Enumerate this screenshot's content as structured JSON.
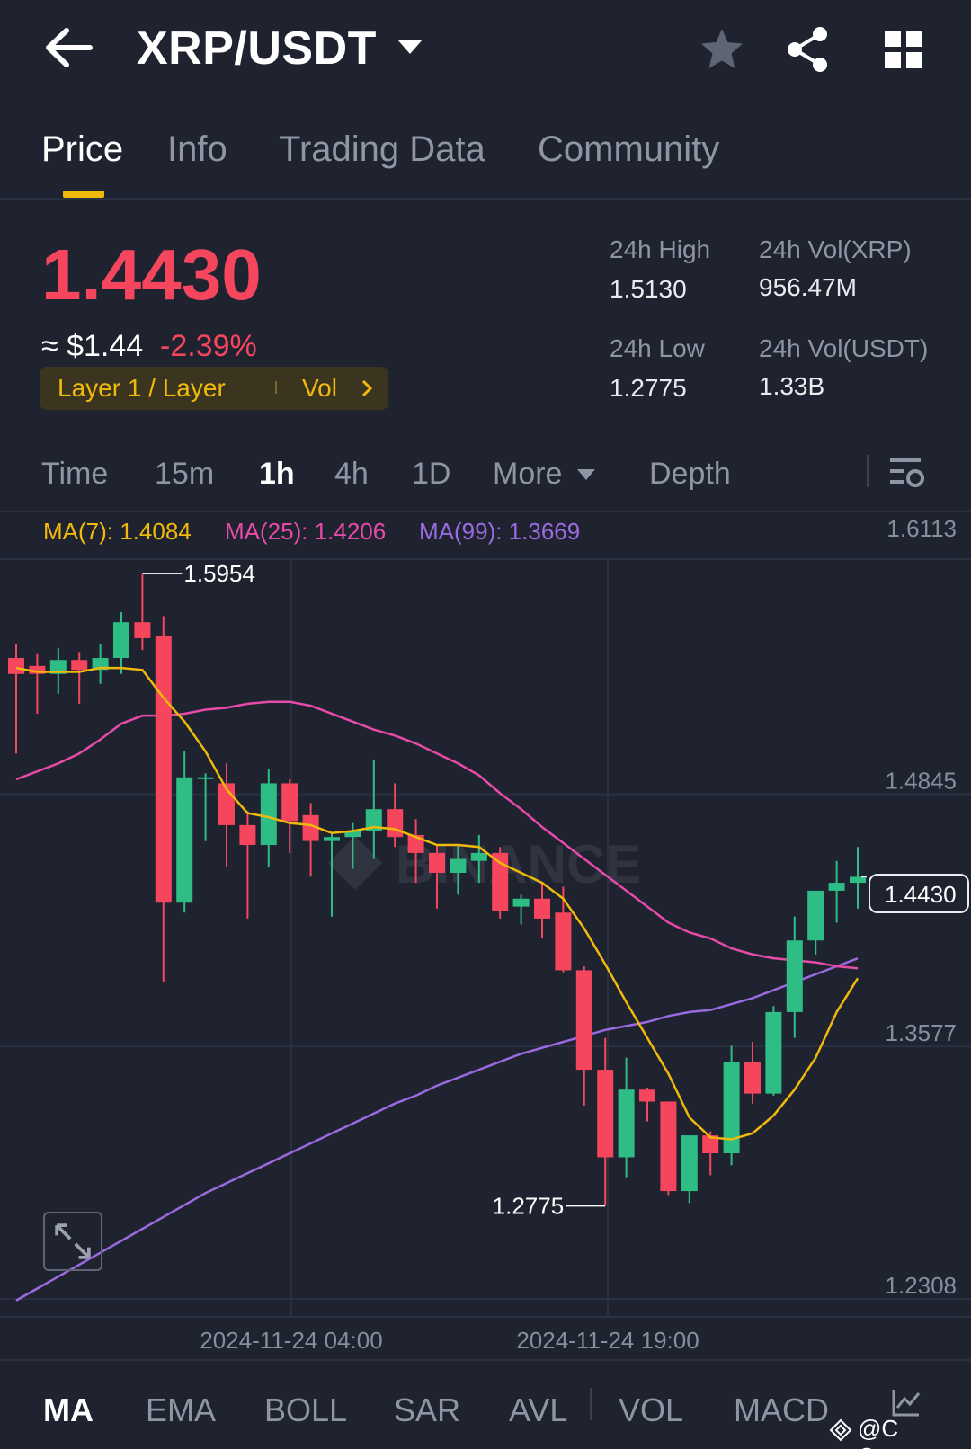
{
  "header": {
    "pair": "XRP/USDT",
    "icons": [
      "back-arrow-icon",
      "chevron-down-icon",
      "star-icon",
      "share-icon",
      "grid-icon"
    ]
  },
  "tabs": [
    {
      "label": "Price",
      "active": true
    },
    {
      "label": "Info",
      "active": false
    },
    {
      "label": "Trading Data",
      "active": false
    },
    {
      "label": "Community",
      "active": false
    }
  ],
  "ticker": {
    "last_price": "1.4430",
    "usd_approx": "≈ $1.44",
    "change_pct": "-2.39%",
    "tag_label": "Layer 1 / Layer",
    "tag_vol": "Vol",
    "stats": {
      "high_label": "24h High",
      "high_value": "1.5130",
      "low_label": "24h Low",
      "low_value": "1.2775",
      "vol_base_label": "24h Vol(XRP)",
      "vol_base_value": "956.47M",
      "vol_quote_label": "24h Vol(USDT)",
      "vol_quote_value": "1.33B"
    }
  },
  "timeframes": {
    "items": [
      "Time",
      "15m",
      "1h",
      "4h",
      "1D",
      "More"
    ],
    "active": "1h",
    "depth": "Depth"
  },
  "ma_legend": {
    "ma7": "MA(7): 1.4084",
    "ma25": "MA(25): 1.4206",
    "ma99": "MA(99): 1.3669"
  },
  "chart_data": {
    "type": "candlestick",
    "symbol": "XRP/USDT",
    "interval": "1h",
    "y_ticks": [
      "1.6113",
      "1.4845",
      "1.3577",
      "1.2308"
    ],
    "ylim": [
      1.2308,
      1.6113
    ],
    "x_ticks": [
      "2024-11-24 04:00",
      "2024-11-24 19:00"
    ],
    "high_marker": "1.5954",
    "low_marker": "1.2775",
    "current_price": "1.4430",
    "candles": [
      {
        "o": 1.553,
        "h": 1.56,
        "l": 1.505,
        "c": 1.545
      },
      {
        "o": 1.549,
        "h": 1.555,
        "l": 1.525,
        "c": 1.545
      },
      {
        "o": 1.545,
        "h": 1.558,
        "l": 1.535,
        "c": 1.552
      },
      {
        "o": 1.552,
        "h": 1.556,
        "l": 1.53,
        "c": 1.547
      },
      {
        "o": 1.547,
        "h": 1.56,
        "l": 1.54,
        "c": 1.553
      },
      {
        "o": 1.553,
        "h": 1.576,
        "l": 1.545,
        "c": 1.571
      },
      {
        "o": 1.571,
        "h": 1.595,
        "l": 1.557,
        "c": 1.563
      },
      {
        "o": 1.564,
        "h": 1.574,
        "l": 1.39,
        "c": 1.43
      },
      {
        "o": 1.43,
        "h": 1.506,
        "l": 1.425,
        "c": 1.493
      },
      {
        "o": 1.493,
        "h": 1.495,
        "l": 1.461,
        "c": 1.493
      },
      {
        "o": 1.49,
        "h": 1.5,
        "l": 1.448,
        "c": 1.469
      },
      {
        "o": 1.469,
        "h": 1.476,
        "l": 1.422,
        "c": 1.459
      },
      {
        "o": 1.459,
        "h": 1.497,
        "l": 1.448,
        "c": 1.49
      },
      {
        "o": 1.49,
        "h": 1.492,
        "l": 1.455,
        "c": 1.471
      },
      {
        "o": 1.474,
        "h": 1.48,
        "l": 1.443,
        "c": 1.461
      },
      {
        "o": 1.461,
        "h": 1.465,
        "l": 1.423,
        "c": 1.463
      },
      {
        "o": 1.463,
        "h": 1.47,
        "l": 1.447,
        "c": 1.466
      },
      {
        "o": 1.466,
        "h": 1.502,
        "l": 1.452,
        "c": 1.477
      },
      {
        "o": 1.477,
        "h": 1.49,
        "l": 1.458,
        "c": 1.463
      },
      {
        "o": 1.464,
        "h": 1.472,
        "l": 1.44,
        "c": 1.455
      },
      {
        "o": 1.455,
        "h": 1.459,
        "l": 1.427,
        "c": 1.445
      },
      {
        "o": 1.445,
        "h": 1.459,
        "l": 1.434,
        "c": 1.452
      },
      {
        "o": 1.451,
        "h": 1.464,
        "l": 1.44,
        "c": 1.455
      },
      {
        "o": 1.455,
        "h": 1.458,
        "l": 1.422,
        "c": 1.426
      },
      {
        "o": 1.428,
        "h": 1.434,
        "l": 1.419,
        "c": 1.432
      },
      {
        "o": 1.432,
        "h": 1.44,
        "l": 1.412,
        "c": 1.422
      },
      {
        "o": 1.425,
        "h": 1.438,
        "l": 1.395,
        "c": 1.396
      },
      {
        "o": 1.396,
        "h": 1.398,
        "l": 1.328,
        "c": 1.346
      },
      {
        "o": 1.346,
        "h": 1.362,
        "l": 1.278,
        "c": 1.302
      },
      {
        "o": 1.302,
        "h": 1.352,
        "l": 1.292,
        "c": 1.336
      },
      {
        "o": 1.336,
        "h": 1.337,
        "l": 1.32,
        "c": 1.33
      },
      {
        "o": 1.33,
        "h": 1.328,
        "l": 1.283,
        "c": 1.285
      },
      {
        "o": 1.285,
        "h": 1.312,
        "l": 1.279,
        "c": 1.313
      },
      {
        "o": 1.313,
        "h": 1.315,
        "l": 1.293,
        "c": 1.304
      },
      {
        "o": 1.304,
        "h": 1.358,
        "l": 1.298,
        "c": 1.35
      },
      {
        "o": 1.35,
        "h": 1.36,
        "l": 1.329,
        "c": 1.334
      },
      {
        "o": 1.334,
        "h": 1.378,
        "l": 1.333,
        "c": 1.375
      },
      {
        "o": 1.375,
        "h": 1.423,
        "l": 1.362,
        "c": 1.411
      },
      {
        "o": 1.411,
        "h": 1.434,
        "l": 1.404,
        "c": 1.436
      },
      {
        "o": 1.436,
        "h": 1.451,
        "l": 1.42,
        "c": 1.44
      },
      {
        "o": 1.44,
        "h": 1.458,
        "l": 1.427,
        "c": 1.443
      }
    ],
    "ma7": [
      1.548,
      1.546,
      1.546,
      1.546,
      1.548,
      1.548,
      1.547,
      1.533,
      1.521,
      1.506,
      1.487,
      1.475,
      1.473,
      1.47,
      1.469,
      1.465,
      1.466,
      1.468,
      1.467,
      1.463,
      1.459,
      1.459,
      1.458,
      1.45,
      1.445,
      1.44,
      1.432,
      1.417,
      1.399,
      1.38,
      1.362,
      1.344,
      1.322,
      1.312,
      1.311,
      1.314,
      1.323,
      1.336,
      1.352,
      1.375,
      1.392
    ],
    "ma25": [
      1.492,
      1.496,
      1.5,
      1.505,
      1.512,
      1.52,
      1.524,
      1.524,
      1.525,
      1.527,
      1.528,
      1.53,
      1.531,
      1.531,
      1.529,
      1.525,
      1.521,
      1.517,
      1.514,
      1.51,
      1.505,
      1.5,
      1.494,
      1.485,
      1.477,
      1.468,
      1.46,
      1.452,
      1.444,
      1.436,
      1.428,
      1.42,
      1.415,
      1.412,
      1.407,
      1.404,
      1.402,
      1.401,
      1.4,
      1.398,
      1.397
    ],
    "ma99": [
      1.23,
      1.236,
      1.242,
      1.248,
      1.254,
      1.26,
      1.266,
      1.272,
      1.278,
      1.284,
      1.289,
      1.294,
      1.299,
      1.304,
      1.309,
      1.314,
      1.319,
      1.324,
      1.329,
      1.333,
      1.338,
      1.342,
      1.346,
      1.35,
      1.354,
      1.357,
      1.36,
      1.363,
      1.366,
      1.368,
      1.37,
      1.373,
      1.375,
      1.376,
      1.379,
      1.382,
      1.386,
      1.39,
      1.394,
      1.398,
      1.402
    ]
  },
  "indicators": {
    "items": [
      "MA",
      "EMA",
      "BOLL",
      "SAR",
      "AVL",
      "VOL",
      "MACD"
    ],
    "active": "MA"
  },
  "watermark": "BINANCE",
  "credit": "@C Queen",
  "colors": {
    "bg": "#1f2330",
    "up": "#2ebd85",
    "down": "#f6465d",
    "accent": "#f0b90b",
    "ma7": "#f0b90b",
    "ma25": "#e64ba9",
    "ma99": "#9a6be0"
  }
}
